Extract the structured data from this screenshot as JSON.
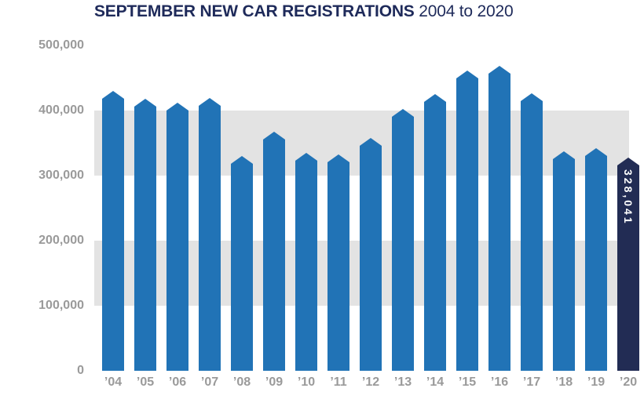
{
  "title": {
    "main": "SEPTEMBER NEW CAR REGISTRATIONS",
    "period": "2004 to 2020"
  },
  "chart_data": {
    "type": "bar",
    "title": "SEPTEMBER NEW CAR REGISTRATIONS 2004 to 2020",
    "xlabel": "",
    "ylabel": "",
    "categories": [
      "’04",
      "’05",
      "’06",
      "’07",
      "’08",
      "’09",
      "’10",
      "’11",
      "’12",
      "’13",
      "’14",
      "’15",
      "’16",
      "’17",
      "’18",
      "’19",
      "’20"
    ],
    "values": [
      430000,
      418000,
      412000,
      419000,
      330000,
      368000,
      335000,
      332000,
      358000,
      403000,
      425000,
      462000,
      469000,
      426000,
      337000,
      342000,
      328041
    ],
    "highlight_index": 16,
    "highlight_label": "328,041",
    "ylim": [
      0,
      500000
    ],
    "yticks": [
      0,
      100000,
      200000,
      300000,
      400000,
      500000
    ],
    "ytick_labels": [
      "0",
      "100,000",
      "200,000",
      "300,000",
      "400,000",
      "500,000"
    ],
    "background_bands": [
      [
        300000,
        400000
      ],
      [
        100000,
        200000
      ]
    ],
    "grid": false,
    "legend": "none",
    "colors": {
      "bar": "#2173b6",
      "highlight_bar": "#222c54",
      "band": "#e3e3e3",
      "axis_text": "#9a9a9a",
      "title_text": "#1e2a5a",
      "value_text": "#ffffff"
    }
  }
}
